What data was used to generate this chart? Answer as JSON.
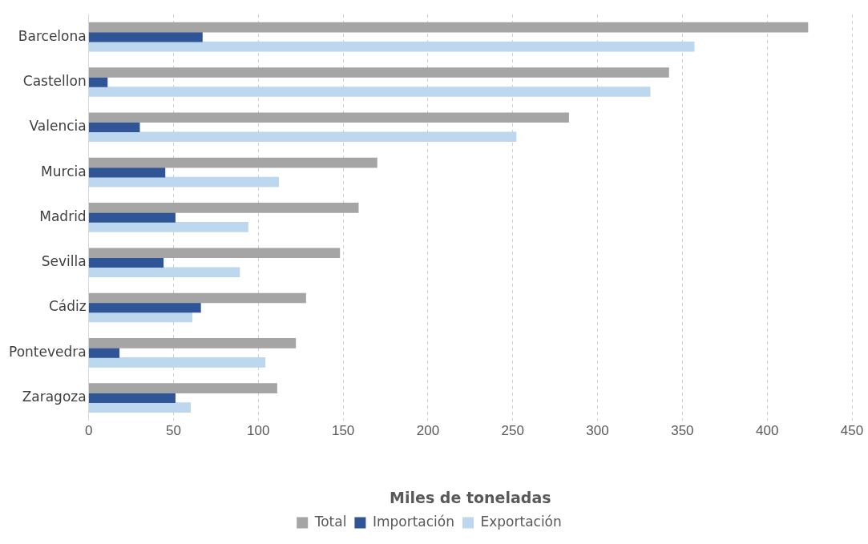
{
  "chart_data": {
    "type": "bar",
    "orientation": "horizontal",
    "xlabel": "Miles de toneladas",
    "categories": [
      "Barcelona",
      "Castellon",
      "Valencia",
      "Murcia",
      "Madrid",
      "Sevilla",
      "Cádiz",
      "Pontevedra",
      "Zaragoza"
    ],
    "series": [
      {
        "name": "Total",
        "color": "#a5a5a5",
        "values": [
          424,
          342,
          283,
          170,
          159,
          148,
          128,
          122,
          111
        ]
      },
      {
        "name": "Importación",
        "color": "#2f5597",
        "values": [
          67,
          11,
          30,
          45,
          51,
          44,
          66,
          18,
          51
        ]
      },
      {
        "name": "Exportación",
        "color": "#bdd7ee",
        "values": [
          357,
          331,
          252,
          112,
          94,
          89,
          61,
          104,
          60
        ]
      }
    ],
    "xlim": [
      0,
      450
    ],
    "xticks": [
      0,
      50,
      100,
      150,
      200,
      250,
      300,
      350,
      400,
      450
    ],
    "grid": "x",
    "legend": "bottom"
  }
}
